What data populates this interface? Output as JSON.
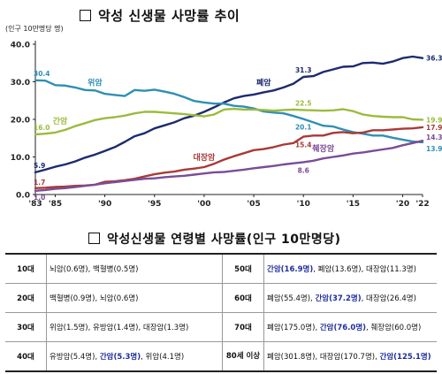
{
  "title": "악성 신생물 사망률 추이",
  "unit_label": "(인구 10만명당 명)",
  "chart_data": {
    "type": "line",
    "title": "악성 신생물 사망률 추이",
    "ylabel": "(인구 10만명당 명)",
    "xlabel": "",
    "ylim": [
      0,
      40
    ],
    "yticks": [
      "0.0",
      "10.0",
      "20.0",
      "30.0",
      "40.0"
    ],
    "xlim": [
      1983,
      2022
    ],
    "xtick_labels": [
      "'83",
      "'85",
      "'90",
      "'95",
      "'00",
      "'05",
      "'10",
      "'15",
      "'20",
      "'22"
    ],
    "xtick_years": [
      1983,
      1985,
      1990,
      1995,
      2000,
      2005,
      2010,
      2015,
      2020,
      2022
    ],
    "grid": false,
    "x": [
      1983,
      1984,
      1985,
      1986,
      1987,
      1988,
      1989,
      1990,
      1991,
      1992,
      1993,
      1994,
      1995,
      1996,
      1997,
      1998,
      1999,
      2000,
      2001,
      2002,
      2003,
      2004,
      2005,
      2006,
      2007,
      2008,
      2009,
      2010,
      2011,
      2012,
      2013,
      2014,
      2015,
      2016,
      2017,
      2018,
      2019,
      2020,
      2021,
      2022
    ],
    "series": [
      {
        "name": "폐암",
        "color": "#1c2b6e",
        "values": [
          5.9,
          6.6,
          7.4,
          8.0,
          8.8,
          9.8,
          10.6,
          11.6,
          12.6,
          14.0,
          15.5,
          16.3,
          17.6,
          18.4,
          19.2,
          20.3,
          21.0,
          22.0,
          23.2,
          24.5,
          25.6,
          26.2,
          26.6,
          27.2,
          27.7,
          28.5,
          29.5,
          31.3,
          31.5,
          32.6,
          33.3,
          34.0,
          34.1,
          35.0,
          35.1,
          34.8,
          35.4,
          36.3,
          36.7,
          36.3
        ]
      },
      {
        "name": "위암",
        "color": "#2f8fb3",
        "values": [
          30.4,
          30.3,
          29.1,
          29.0,
          28.5,
          27.8,
          27.7,
          26.8,
          26.5,
          26.2,
          27.8,
          27.6,
          27.9,
          27.4,
          26.8,
          25.9,
          24.9,
          24.5,
          24.2,
          24.2,
          23.6,
          23.4,
          22.9,
          22.1,
          21.8,
          21.6,
          20.9,
          20.1,
          19.2,
          18.3,
          18.1,
          17.3,
          16.6,
          16.2,
          15.7,
          15.7,
          15.1,
          14.6,
          14.1,
          13.9
        ]
      },
      {
        "name": "간암",
        "color": "#9bbb3d",
        "values": [
          16.0,
          16.2,
          16.5,
          17.2,
          18.2,
          19.0,
          19.8,
          20.3,
          20.6,
          21.0,
          21.6,
          22.0,
          22.0,
          21.8,
          21.6,
          21.4,
          21.1,
          20.8,
          21.3,
          22.6,
          22.8,
          22.6,
          22.6,
          22.5,
          22.3,
          22.5,
          22.6,
          22.5,
          22.4,
          22.3,
          22.4,
          22.7,
          22.2,
          21.3,
          20.9,
          20.7,
          20.6,
          20.6,
          20.0,
          19.9
        ]
      },
      {
        "name": "대장암",
        "color": "#a83a37",
        "values": [
          1.7,
          1.8,
          2.0,
          2.1,
          2.3,
          2.4,
          2.6,
          3.4,
          3.5,
          3.8,
          4.2,
          4.8,
          5.4,
          5.8,
          6.1,
          6.6,
          6.9,
          7.3,
          8.2,
          9.3,
          10.2,
          11.0,
          11.8,
          12.1,
          12.6,
          13.3,
          13.7,
          15.4,
          15.7,
          15.7,
          16.4,
          16.6,
          16.3,
          16.5,
          17.1,
          17.1,
          17.3,
          17.5,
          17.6,
          17.9
        ]
      },
      {
        "name": "췌장암",
        "color": "#7b4c96",
        "values": [
          1.0,
          1.2,
          1.5,
          1.7,
          2.0,
          2.3,
          2.6,
          3.0,
          3.3,
          3.6,
          3.9,
          4.2,
          4.3,
          4.6,
          4.8,
          5.0,
          5.3,
          5.6,
          5.9,
          6.0,
          6.3,
          6.6,
          7.0,
          7.3,
          7.6,
          8.0,
          8.3,
          8.6,
          9.0,
          9.6,
          10.0,
          10.4,
          10.9,
          11.2,
          11.6,
          12.0,
          12.4,
          13.1,
          13.7,
          14.3
        ]
      }
    ],
    "value_labels": [
      {
        "series": "위암",
        "year": 1983,
        "text": "30.4"
      },
      {
        "series": "위암",
        "year": 2010,
        "text": "20.1"
      },
      {
        "series": "위암",
        "year": 2022,
        "text": "13.9"
      },
      {
        "series": "간암",
        "year": 1983,
        "text": "16.0"
      },
      {
        "series": "간암",
        "year": 2010,
        "text": "22.5"
      },
      {
        "series": "간암",
        "year": 2022,
        "text": "19.9"
      },
      {
        "series": "폐암",
        "year": 1983,
        "text": "5.9"
      },
      {
        "series": "폐암",
        "year": 2010,
        "text": "31.3"
      },
      {
        "series": "폐암",
        "year": 2022,
        "text": "36.3"
      },
      {
        "series": "대장암",
        "year": 1983,
        "text": "1.7"
      },
      {
        "series": "대장암",
        "year": 2010,
        "text": "15.4"
      },
      {
        "series": "대장암",
        "year": 2022,
        "text": "17.9"
      },
      {
        "series": "췌장암",
        "year": 1983,
        "text": "1.0"
      },
      {
        "series": "췌장암",
        "year": 2010,
        "text": "8.6"
      },
      {
        "series": "췌장암",
        "year": 2022,
        "text": "14.3"
      }
    ],
    "series_name_labels": [
      {
        "series": "위암",
        "year": 1989
      },
      {
        "series": "간암",
        "year": 1985.5
      },
      {
        "series": "폐암",
        "year": 2006
      },
      {
        "series": "대장암",
        "year": 2000
      },
      {
        "series": "췌장암",
        "year": 2012
      }
    ]
  },
  "age_table": {
    "title": "악성신생물 연령별 사망률(인구 10만명당)",
    "highlight_color": "#1f2d9c",
    "rows": [
      {
        "left_age": "10대",
        "left_items": [
          {
            "text": "뇌암(0.6명)"
          },
          {
            "text": "백혈병(0.5명)"
          }
        ],
        "right_age": "50대",
        "right_items": [
          {
            "text": "간암(16.9명)",
            "hl": true
          },
          {
            "text": "폐암(13.6명)"
          },
          {
            "text": "대장암(11.3명)"
          }
        ]
      },
      {
        "left_age": "20대",
        "left_items": [
          {
            "text": "백혈병(0.9명)"
          },
          {
            "text": "뇌암(0.6명)"
          }
        ],
        "right_age": "60대",
        "right_items": [
          {
            "text": "폐암(55.4명)"
          },
          {
            "text": "간암(37.2명)",
            "hl": true
          },
          {
            "text": "대장암(26.4명)"
          }
        ]
      },
      {
        "left_age": "30대",
        "left_items": [
          {
            "text": "위암(1.5명)"
          },
          {
            "text": "유방암(1.4명)"
          },
          {
            "text": "대장암(1.3명)"
          }
        ],
        "right_age": "70대",
        "right_items": [
          {
            "text": "폐암(175.0명)"
          },
          {
            "text": "간암(76.0명)",
            "hl": true
          },
          {
            "text": "췌장암(60.0명)"
          }
        ]
      },
      {
        "left_age": "40대",
        "left_items": [
          {
            "text": "유방암(5.4명)"
          },
          {
            "text": "간암(5.3명)",
            "hl": true
          },
          {
            "text": "위암(4.1명)"
          }
        ],
        "right_age": "80세 이상",
        "right_items": [
          {
            "text": "폐암(301.8명)"
          },
          {
            "text": "대장암(170.7명)"
          },
          {
            "text": "간암(125.1명)",
            "hl": true
          }
        ]
      }
    ]
  }
}
